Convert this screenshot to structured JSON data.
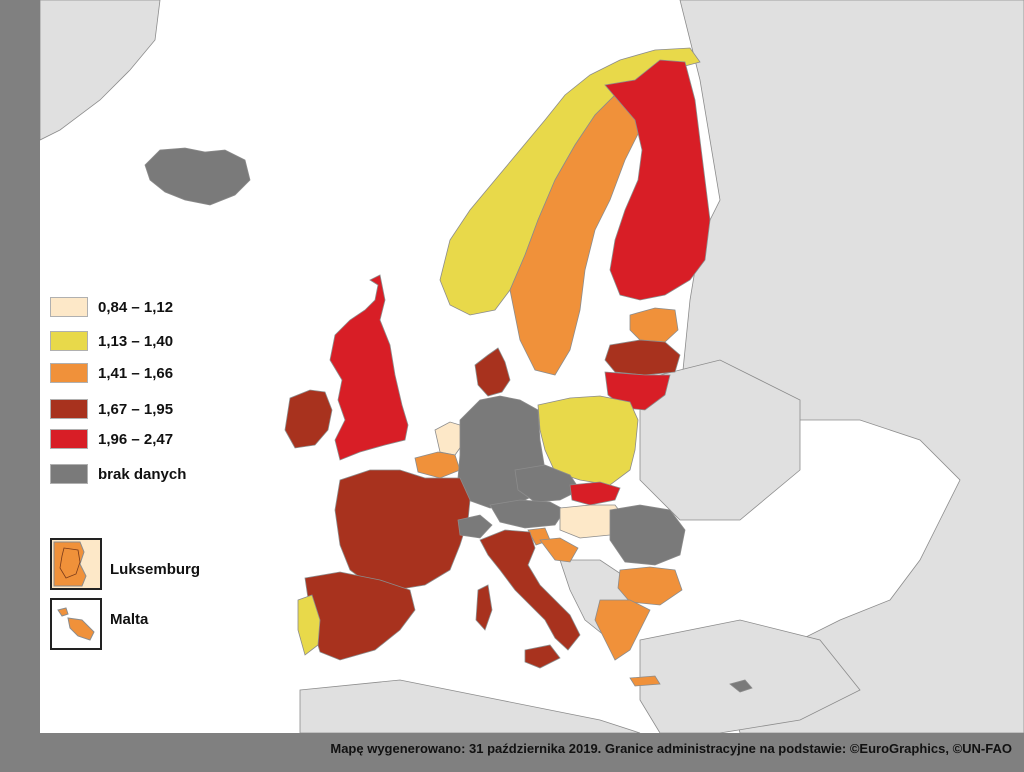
{
  "colors": {
    "sea": "#ffffff",
    "land_other": "#e0e0e0",
    "border": "#8c8c8c",
    "frame": "#808080"
  },
  "legend": [
    {
      "label": "0,84 – 1,12",
      "color": "#fde8c8"
    },
    {
      "label": "1,13 – 1,40",
      "color": "#e8d94a"
    },
    {
      "label": "1,41 – 1,66",
      "color": "#f0913a"
    },
    {
      "label": "1,67 – 1,95",
      "color": "#a8321e"
    },
    {
      "label": "1,96 – 2,47",
      "color": "#d81e26"
    },
    {
      "label": "brak danych",
      "color": "#7a7a7a"
    }
  ],
  "insets": {
    "luxembourg": "Luksemburg",
    "malta": "Malta"
  },
  "footer": "Mapę wygenerowano: 31 października 2019. Granice administracyjne na podstawie: ©EuroGraphics, ©UN-FAO"
}
